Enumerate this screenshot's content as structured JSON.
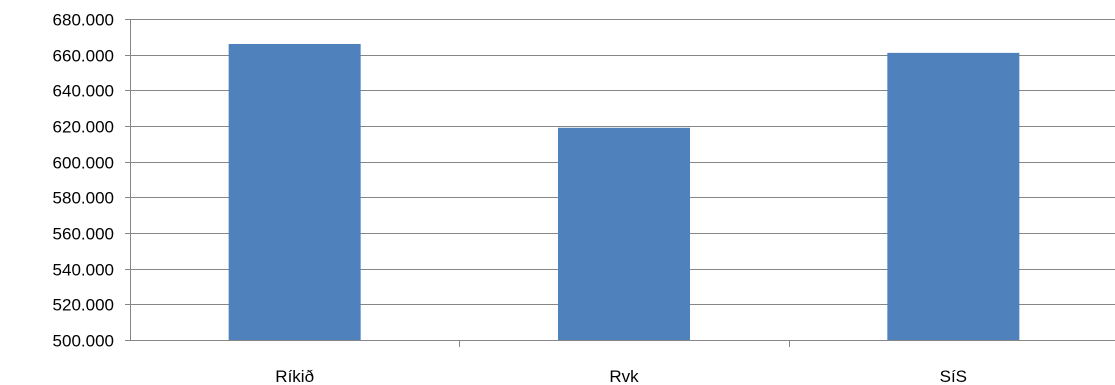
{
  "chart_data": {
    "type": "bar",
    "title": "",
    "xlabel": "",
    "ylabel": "",
    "categories": [
      "Ríkið",
      "Rvk",
      "SíS"
    ],
    "values": [
      666000,
      619000,
      661000
    ],
    "ylim": [
      500000,
      680000
    ],
    "yticks": [
      500000,
      520000,
      540000,
      560000,
      580000,
      600000,
      620000,
      640000,
      660000,
      680000
    ],
    "ytick_labels": [
      "500.000",
      "520.000",
      "540.000",
      "560.000",
      "580.000",
      "600.000",
      "620.000",
      "640.000",
      "660.000",
      "680.000"
    ],
    "grid": true,
    "legend": "none",
    "colors": {
      "bar": "#4F81BD",
      "grid": "#868686",
      "axis": "#868686"
    }
  }
}
